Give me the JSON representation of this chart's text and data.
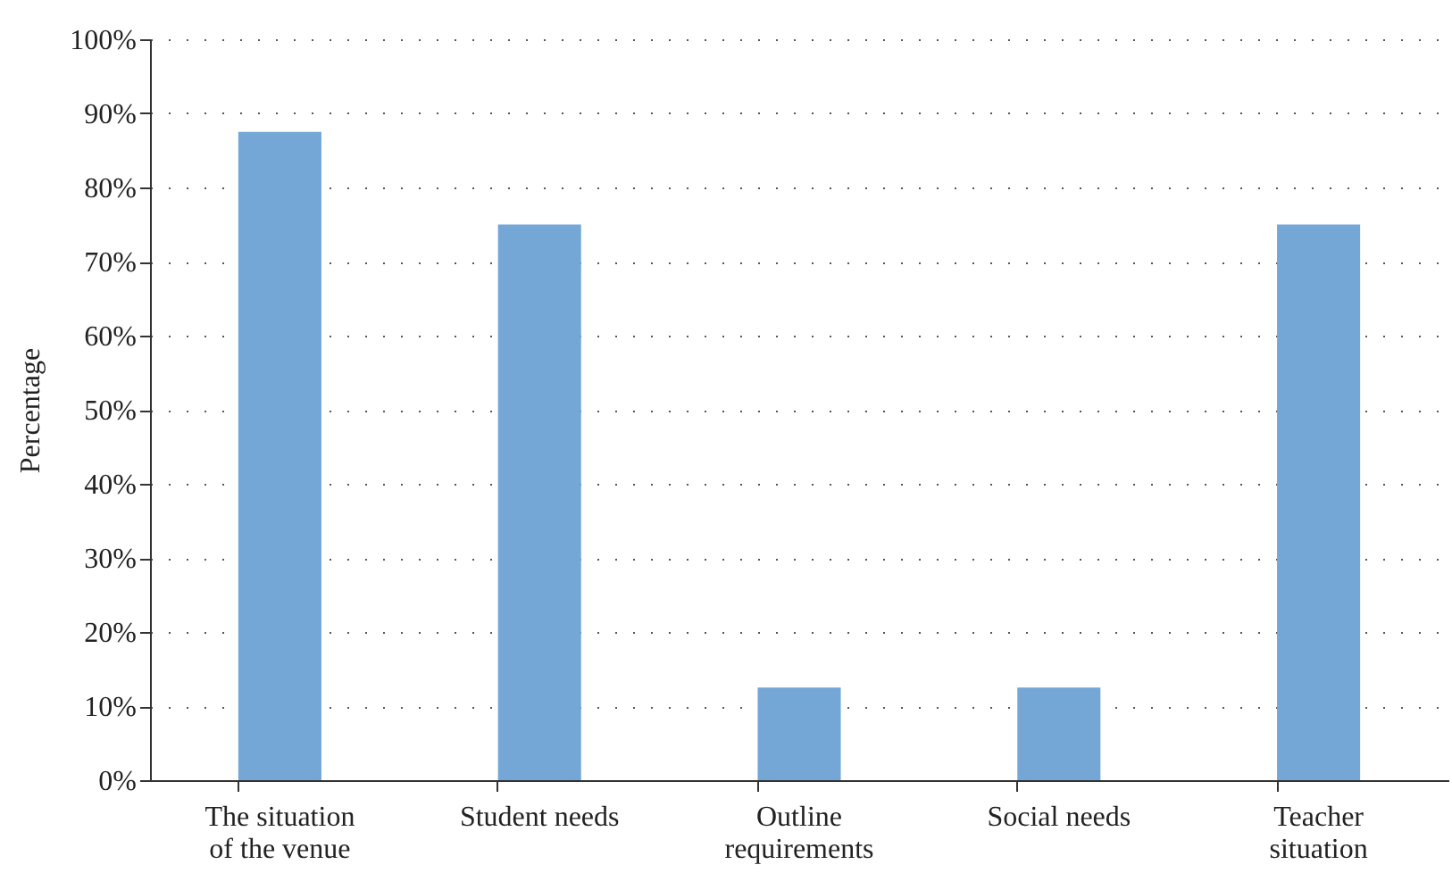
{
  "chart_data": {
    "type": "bar",
    "ylabel": "Percentage",
    "categories": [
      "The situation of the venue",
      "Student needs",
      "Outline requirements",
      "Social needs",
      "Teacher situation"
    ],
    "values": [
      87.5,
      75,
      12.5,
      12.5,
      75
    ],
    "color": "#74a6d6",
    "ylim": [
      0,
      100
    ],
    "yticks": [
      {
        "value": 0,
        "label": "0%"
      },
      {
        "value": 10,
        "label": "10%"
      },
      {
        "value": 20,
        "label": "20%"
      },
      {
        "value": 30,
        "label": "30%"
      },
      {
        "value": 40,
        "label": "40%"
      },
      {
        "value": 50,
        "label": "50%"
      },
      {
        "value": 60,
        "label": "60%"
      },
      {
        "value": 70,
        "label": "70%"
      },
      {
        "value": 80,
        "label": "80%"
      },
      {
        "value": 90,
        "label": "90%"
      },
      {
        "value": 100,
        "label": "100%"
      }
    ],
    "grid": "y"
  }
}
